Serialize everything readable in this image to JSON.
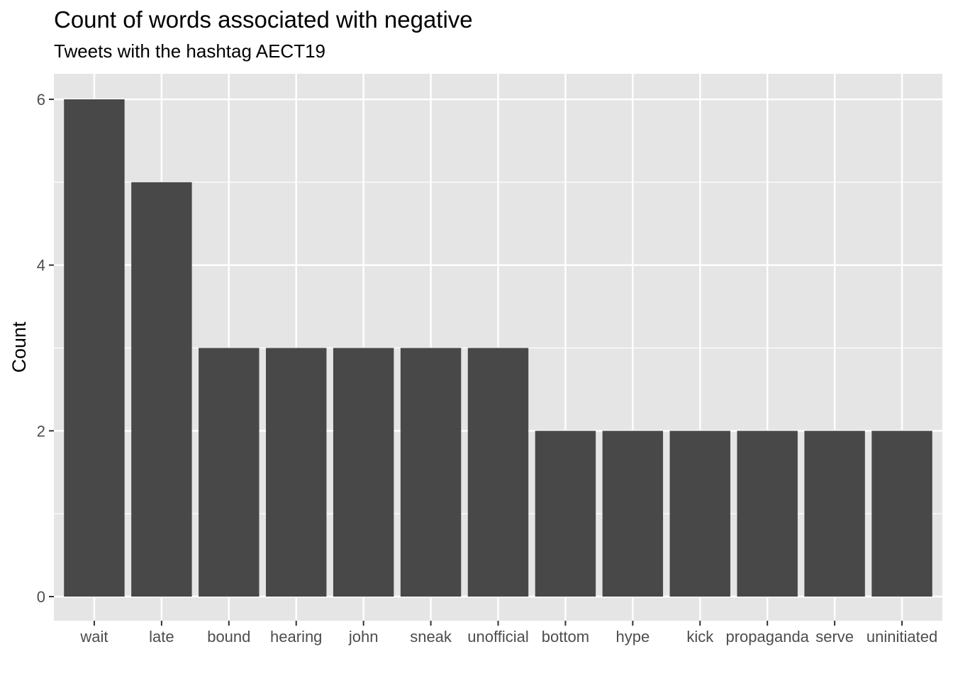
{
  "chart_data": {
    "type": "bar",
    "title": "Count of words associated with negative",
    "subtitle": "Tweets with the hashtag AECT19",
    "xlabel": "",
    "ylabel": "Count",
    "categories": [
      "wait",
      "late",
      "bound",
      "hearing",
      "john",
      "sneak",
      "unofficial",
      "bottom",
      "hype",
      "kick",
      "propaganda",
      "serve",
      "uninitiated"
    ],
    "values": [
      6,
      5,
      3,
      3,
      3,
      3,
      3,
      2,
      2,
      2,
      2,
      2,
      2
    ],
    "ylim": [
      0,
      6.3
    ],
    "yticks": [
      0,
      2,
      4,
      6
    ],
    "grid": true,
    "legend": "none",
    "colors": {
      "bar": "#484848",
      "panel": "#e5e5e5",
      "grid": "#ffffff",
      "tick": "#4d4d4d"
    }
  }
}
